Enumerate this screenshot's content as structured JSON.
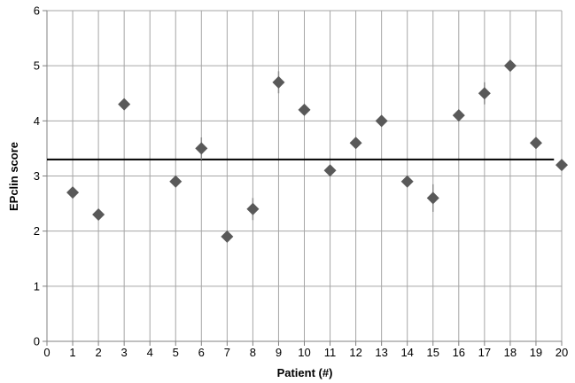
{
  "chart_data": {
    "type": "scatter",
    "title": "",
    "xlabel": "Patient (#)",
    "ylabel": "EPclin score",
    "xlim": [
      0,
      20
    ],
    "ylim": [
      0,
      6
    ],
    "xticks": [
      0,
      1,
      2,
      3,
      4,
      5,
      6,
      7,
      8,
      9,
      10,
      11,
      12,
      13,
      14,
      15,
      16,
      17,
      18,
      19,
      20
    ],
    "yticks": [
      0,
      1,
      2,
      3,
      4,
      5,
      6
    ],
    "grid": true,
    "marker": "diamond",
    "marker_color": "#595959",
    "gridline_color": "#a6a6a6",
    "reference_line": {
      "y": 3.3,
      "color": "#000000"
    },
    "points": [
      {
        "x": 1,
        "y": 2.7
      },
      {
        "x": 2,
        "y": 2.3
      },
      {
        "x": 3,
        "y": 4.3
      },
      {
        "x": 5,
        "y": 2.9
      },
      {
        "x": 6,
        "y": 3.5,
        "err": 0.2
      },
      {
        "x": 7,
        "y": 1.9
      },
      {
        "x": 8,
        "y": 2.4,
        "err": 0.2
      },
      {
        "x": 9,
        "y": 4.7,
        "err": 0.2
      },
      {
        "x": 10,
        "y": 4.2
      },
      {
        "x": 11,
        "y": 3.1
      },
      {
        "x": 12,
        "y": 3.6
      },
      {
        "x": 13,
        "y": 4.0
      },
      {
        "x": 14,
        "y": 2.9
      },
      {
        "x": 15,
        "y": 2.6,
        "err": 0.25
      },
      {
        "x": 16,
        "y": 4.1
      },
      {
        "x": 17,
        "y": 4.5,
        "err": 0.2
      },
      {
        "x": 18,
        "y": 5.0
      },
      {
        "x": 19,
        "y": 3.6
      },
      {
        "x": 20,
        "y": 3.2
      }
    ]
  }
}
